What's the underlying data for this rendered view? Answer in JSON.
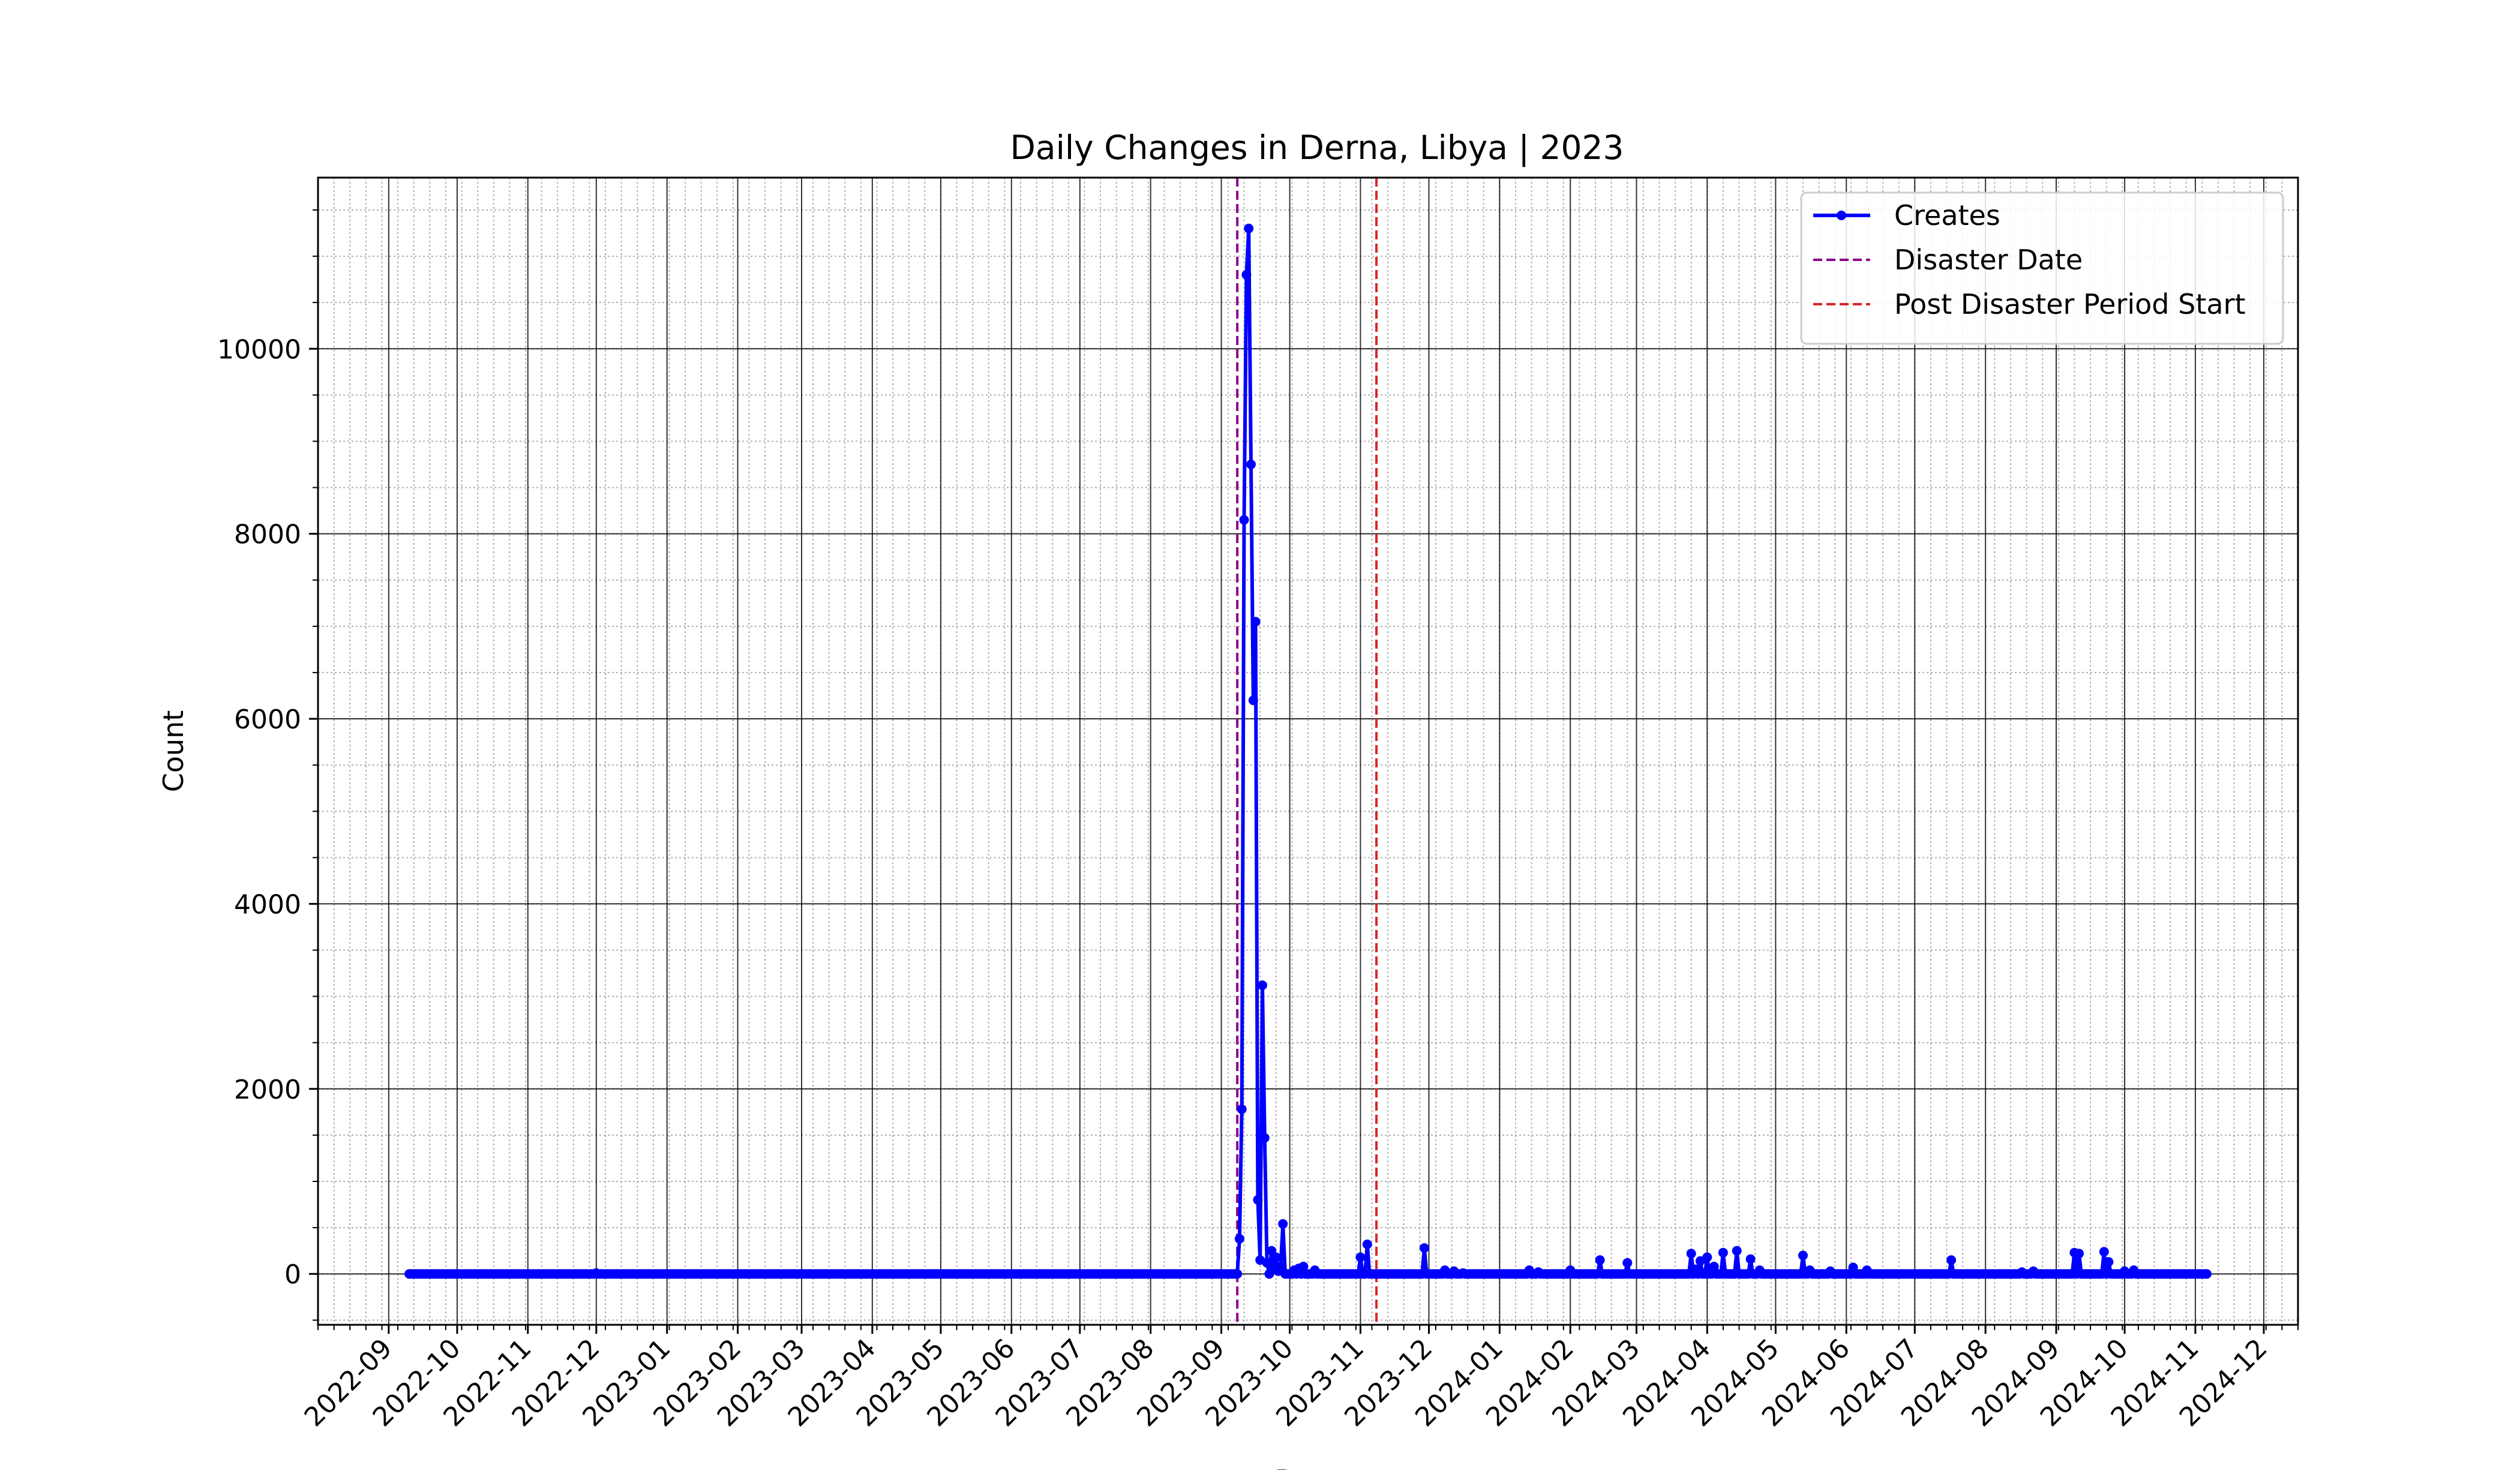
{
  "chart_data": {
    "type": "line",
    "title": "Daily Changes in Derna, Libya | 2023",
    "xlabel": "Date",
    "ylabel": "Count",
    "xlim": [
      "2022-08-01",
      "2024-12-16"
    ],
    "ylim": [
      -550,
      11850
    ],
    "y_ticks": [
      0,
      2000,
      4000,
      6000,
      8000,
      10000
    ],
    "y_minor_step": 500,
    "x_ticks": [
      "2022-09",
      "2022-10",
      "2022-11",
      "2022-12",
      "2023-01",
      "2023-02",
      "2023-03",
      "2023-04",
      "2023-05",
      "2023-06",
      "2023-07",
      "2023-08",
      "2023-09",
      "2023-10",
      "2023-11",
      "2023-12",
      "2024-01",
      "2024-02",
      "2024-03",
      "2024-04",
      "2024-05",
      "2024-06",
      "2024-07",
      "2024-08",
      "2024-09",
      "2024-10",
      "2024-11",
      "2024-12"
    ],
    "x_minor": "weekly",
    "grid": true,
    "legend_position": "top-right",
    "series": [
      {
        "name": "Creates",
        "color": "#0000ff",
        "marker": "circle",
        "baseline_value": 0,
        "range": [
          "2022-09-10",
          "2024-11-06"
        ],
        "points": [
          [
            "2022-12-01",
            10
          ],
          [
            "2023-09-08",
            0
          ],
          [
            "2023-09-09",
            380
          ],
          [
            "2023-09-10",
            1780
          ],
          [
            "2023-09-11",
            8150
          ],
          [
            "2023-09-12",
            10800
          ],
          [
            "2023-09-13",
            11300
          ],
          [
            "2023-09-14",
            8750
          ],
          [
            "2023-09-15",
            6200
          ],
          [
            "2023-09-16",
            7050
          ],
          [
            "2023-09-17",
            800
          ],
          [
            "2023-09-18",
            150
          ],
          [
            "2023-09-19",
            3120
          ],
          [
            "2023-09-20",
            1470
          ],
          [
            "2023-09-21",
            120
          ],
          [
            "2023-09-22",
            0
          ],
          [
            "2023-09-23",
            250
          ],
          [
            "2023-09-24",
            60
          ],
          [
            "2023-09-25",
            180
          ],
          [
            "2023-09-26",
            30
          ],
          [
            "2023-09-27",
            80
          ],
          [
            "2023-09-28",
            540
          ],
          [
            "2023-09-29",
            0
          ],
          [
            "2023-10-03",
            40
          ],
          [
            "2023-10-05",
            60
          ],
          [
            "2023-10-07",
            80
          ],
          [
            "2023-10-12",
            40
          ],
          [
            "2023-11-01",
            180
          ],
          [
            "2023-11-04",
            320
          ],
          [
            "2023-11-29",
            280
          ],
          [
            "2023-12-08",
            40
          ],
          [
            "2023-12-12",
            30
          ],
          [
            "2023-12-16",
            10
          ],
          [
            "2024-01-14",
            40
          ],
          [
            "2024-01-18",
            20
          ],
          [
            "2024-02-01",
            40
          ],
          [
            "2024-02-14",
            150
          ],
          [
            "2024-02-26",
            120
          ],
          [
            "2024-03-25",
            220
          ],
          [
            "2024-03-27",
            50
          ],
          [
            "2024-03-29",
            140
          ],
          [
            "2024-04-01",
            180
          ],
          [
            "2024-04-04",
            80
          ],
          [
            "2024-04-08",
            230
          ],
          [
            "2024-04-14",
            250
          ],
          [
            "2024-04-20",
            160
          ],
          [
            "2024-04-24",
            40
          ],
          [
            "2024-05-13",
            200
          ],
          [
            "2024-05-16",
            40
          ],
          [
            "2024-05-25",
            30
          ],
          [
            "2024-06-04",
            70
          ],
          [
            "2024-06-10",
            40
          ],
          [
            "2024-07-17",
            150
          ],
          [
            "2024-08-17",
            20
          ],
          [
            "2024-08-22",
            30
          ],
          [
            "2024-09-09",
            230
          ],
          [
            "2024-09-11",
            220
          ],
          [
            "2024-09-22",
            240
          ],
          [
            "2024-09-24",
            130
          ],
          [
            "2024-10-01",
            30
          ],
          [
            "2024-10-05",
            40
          ]
        ]
      }
    ],
    "vlines": [
      {
        "name": "Disaster Date",
        "x": "2023-09-08",
        "color": "#8b008b",
        "style": "dashed"
      },
      {
        "name": "Post Disaster Period Start",
        "x": "2023-11-08",
        "color": "#d62728",
        "style": "dashed"
      }
    ]
  }
}
